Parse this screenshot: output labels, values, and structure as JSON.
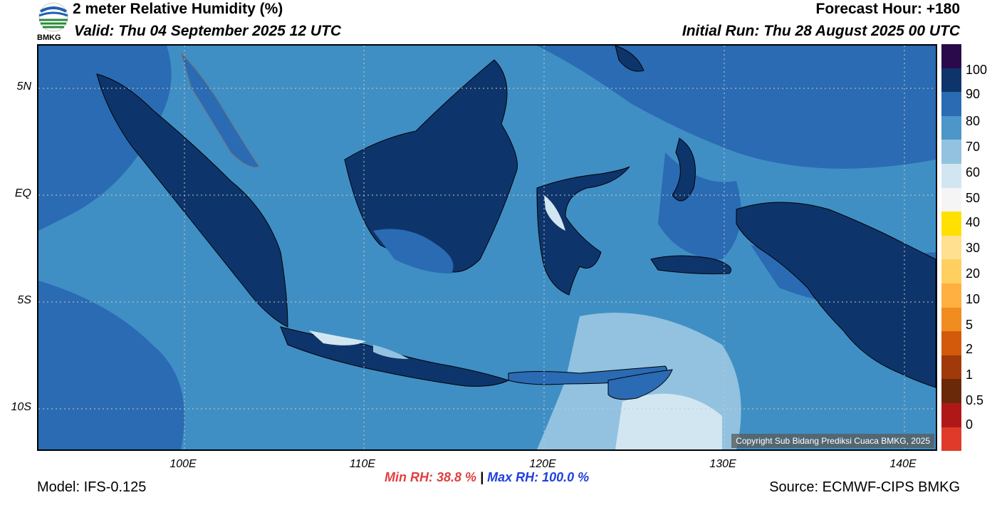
{
  "header": {
    "title": "2 meter Relative Humidity (%)",
    "valid": "Valid: Thu 04 September 2025 12 UTC",
    "forecast_hour": "Forecast Hour: +180",
    "initial_run": "Initial Run: Thu 28 August 2025 00 UTC"
  },
  "logo": {
    "text": "BMKG",
    "icon": "bmkg-logo-icon"
  },
  "map": {
    "lat_labels": [
      "5N",
      "EQ",
      "5S",
      "10S"
    ],
    "lon_labels": [
      "100E",
      "110E",
      "120E",
      "130E",
      "140E"
    ],
    "copyright": "Copyright Sub Bidang Prediksi Cuaca BMKG, 2025"
  },
  "colorbar": {
    "colors": [
      "#2a0a4a",
      "#0e356b",
      "#2a6bb3",
      "#4c96ca",
      "#92c2e0",
      "#d2e6f2",
      "#f5f5f5",
      "#ffe000",
      "#ffe090",
      "#ffd060",
      "#ffb040",
      "#f08c20",
      "#d25a0a",
      "#a03a0a",
      "#6a2a0a",
      "#b01818",
      "#e03a2a"
    ],
    "labels": [
      "100",
      "90",
      "80",
      "70",
      "60",
      "50",
      "40",
      "30",
      "20",
      "10",
      "5",
      "2",
      "1",
      "0.5",
      "0"
    ]
  },
  "footer": {
    "model": "Model: IFS-0.125",
    "source": "Source: ECMWF-CIPS BMKG",
    "min_rh": "Min RH:  38.8 %",
    "separator": "|",
    "max_rh": "Max RH: 100.0 %"
  }
}
